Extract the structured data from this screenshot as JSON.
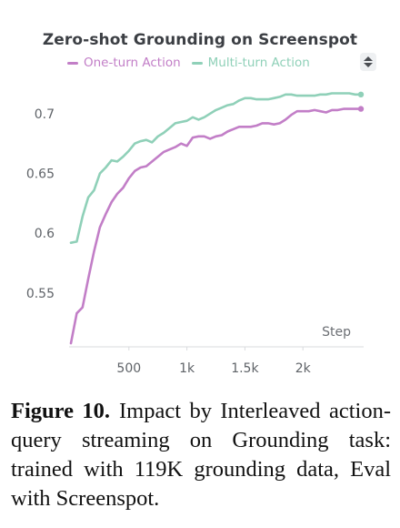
{
  "figure": {
    "caption_label": "Figure 10.",
    "caption_text": "Impact by Interleaved action-query streaming on Grounding task: trained with 119K grounding data, Eval with Screenspot."
  },
  "legend_toggle": {
    "icon": "sort-arrows-icon"
  },
  "chart_data": {
    "type": "line",
    "title": "Zero-shot Grounding on Screenspot",
    "xlabel": "Step",
    "ylabel": "",
    "xlim": [
      0,
      2500
    ],
    "ylim": [
      0.505,
      0.725
    ],
    "grid": false,
    "legend": "top-left",
    "x_ticks": [
      500,
      1000,
      1500,
      2000
    ],
    "x_tick_labels": [
      "500",
      "1k",
      "1.5k",
      "2k"
    ],
    "y_ticks": [
      0.55,
      0.6,
      0.65,
      0.7
    ],
    "y_tick_labels": [
      "0.55",
      "0.6",
      "0.65",
      "0.7"
    ],
    "series": [
      {
        "name": "One-turn Action",
        "color": "#c27ec7",
        "x": [
          0,
          50,
          100,
          150,
          200,
          250,
          300,
          350,
          400,
          450,
          500,
          550,
          600,
          650,
          700,
          750,
          800,
          850,
          900,
          950,
          1000,
          1050,
          1100,
          1150,
          1200,
          1250,
          1300,
          1350,
          1400,
          1450,
          1500,
          1550,
          1600,
          1650,
          1700,
          1750,
          1800,
          1850,
          1900,
          1950,
          2000,
          2050,
          2100,
          2150,
          2200,
          2250,
          2300,
          2350,
          2400,
          2450,
          2500
        ],
        "values": [
          0.508,
          0.533,
          0.538,
          0.562,
          0.585,
          0.605,
          0.616,
          0.626,
          0.633,
          0.638,
          0.646,
          0.652,
          0.655,
          0.656,
          0.66,
          0.664,
          0.668,
          0.67,
          0.672,
          0.675,
          0.673,
          0.68,
          0.681,
          0.681,
          0.679,
          0.681,
          0.682,
          0.685,
          0.687,
          0.689,
          0.689,
          0.689,
          0.69,
          0.692,
          0.692,
          0.691,
          0.692,
          0.695,
          0.699,
          0.702,
          0.702,
          0.702,
          0.703,
          0.702,
          0.701,
          0.703,
          0.703,
          0.704,
          0.704,
          0.704,
          0.704
        ]
      },
      {
        "name": "Multi-turn Action",
        "color": "#8fd0b8",
        "x": [
          0,
          50,
          100,
          150,
          200,
          250,
          300,
          350,
          400,
          450,
          500,
          550,
          600,
          650,
          700,
          750,
          800,
          850,
          900,
          950,
          1000,
          1050,
          1100,
          1150,
          1200,
          1250,
          1300,
          1350,
          1400,
          1450,
          1500,
          1550,
          1600,
          1650,
          1700,
          1750,
          1800,
          1850,
          1900,
          1950,
          2000,
          2050,
          2100,
          2150,
          2200,
          2250,
          2300,
          2350,
          2400,
          2450,
          2500
        ],
        "values": [
          0.592,
          0.593,
          0.614,
          0.63,
          0.636,
          0.65,
          0.655,
          0.661,
          0.66,
          0.664,
          0.669,
          0.675,
          0.677,
          0.678,
          0.676,
          0.681,
          0.684,
          0.688,
          0.692,
          0.693,
          0.694,
          0.697,
          0.695,
          0.697,
          0.7,
          0.703,
          0.705,
          0.707,
          0.708,
          0.711,
          0.713,
          0.713,
          0.712,
          0.712,
          0.712,
          0.713,
          0.714,
          0.716,
          0.716,
          0.715,
          0.715,
          0.715,
          0.715,
          0.716,
          0.716,
          0.717,
          0.717,
          0.717,
          0.717,
          0.716,
          0.716
        ]
      }
    ]
  }
}
